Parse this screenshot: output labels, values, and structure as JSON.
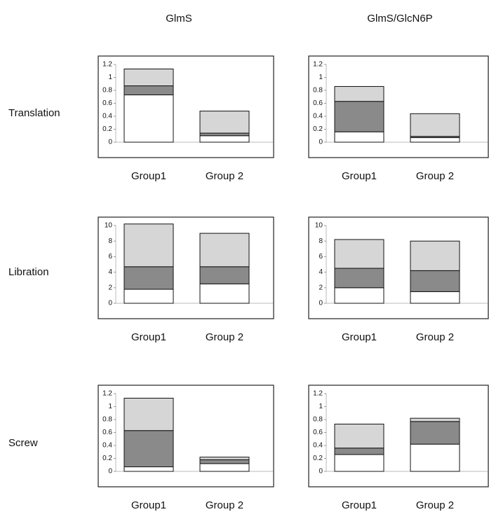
{
  "columns": [
    "GlmS",
    "GlmS/GlcN6P"
  ],
  "rows": [
    "Translation",
    "Libration",
    "Screw"
  ],
  "chart_data": [
    {
      "type": "bar",
      "stacked": true,
      "categories": [
        "Group1",
        "Group 2"
      ],
      "ylim": [
        0,
        1.2
      ],
      "yticks": [
        0,
        0.2,
        0.4,
        0.6,
        0.8,
        1,
        1.2
      ],
      "series": [
        {
          "color": "#ffffff",
          "values": [
            0.73,
            0.1
          ]
        },
        {
          "color": "#8a8a8a",
          "values": [
            0.14,
            0.04
          ]
        },
        {
          "color": "#d6d6d6",
          "values": [
            0.26,
            0.34
          ]
        }
      ]
    },
    {
      "type": "bar",
      "stacked": true,
      "categories": [
        "Group1",
        "Group 2"
      ],
      "ylim": [
        0,
        1.2
      ],
      "yticks": [
        0,
        0.2,
        0.4,
        0.6,
        0.8,
        1,
        1.2
      ],
      "series": [
        {
          "color": "#ffffff",
          "values": [
            0.16,
            0.07
          ]
        },
        {
          "color": "#8a8a8a",
          "values": [
            0.47,
            0.02
          ]
        },
        {
          "color": "#d6d6d6",
          "values": [
            0.23,
            0.35
          ]
        }
      ]
    },
    {
      "type": "bar",
      "stacked": true,
      "categories": [
        "Group1",
        "Group 2"
      ],
      "ylim": [
        0,
        10
      ],
      "yticks": [
        0,
        2,
        4,
        6,
        8,
        10
      ],
      "series": [
        {
          "color": "#ffffff",
          "values": [
            1.8,
            2.5
          ]
        },
        {
          "color": "#8a8a8a",
          "values": [
            2.9,
            2.2
          ]
        },
        {
          "color": "#d6d6d6",
          "values": [
            5.5,
            4.3
          ]
        }
      ]
    },
    {
      "type": "bar",
      "stacked": true,
      "categories": [
        "Group1",
        "Group 2"
      ],
      "ylim": [
        0,
        10
      ],
      "yticks": [
        0,
        2,
        4,
        6,
        8,
        10
      ],
      "series": [
        {
          "color": "#ffffff",
          "values": [
            2,
            1.5
          ]
        },
        {
          "color": "#8a8a8a",
          "values": [
            2.5,
            2.7
          ]
        },
        {
          "color": "#d6d6d6",
          "values": [
            3.7,
            3.8
          ]
        }
      ]
    },
    {
      "type": "bar",
      "stacked": true,
      "categories": [
        "Group1",
        "Group 2"
      ],
      "ylim": [
        0,
        1.2
      ],
      "yticks": [
        0,
        0.2,
        0.4,
        0.6,
        0.8,
        1,
        1.2
      ],
      "series": [
        {
          "color": "#ffffff",
          "values": [
            0.07,
            0.12
          ]
        },
        {
          "color": "#8a8a8a",
          "values": [
            0.56,
            0.06
          ]
        },
        {
          "color": "#d6d6d6",
          "values": [
            0.5,
            0.04
          ]
        }
      ]
    },
    {
      "type": "bar",
      "stacked": true,
      "categories": [
        "Group1",
        "Group 2"
      ],
      "ylim": [
        0,
        1.2
      ],
      "yticks": [
        0,
        0.2,
        0.4,
        0.6,
        0.8,
        1,
        1.2
      ],
      "series": [
        {
          "color": "#ffffff",
          "values": [
            0.26,
            0.42
          ]
        },
        {
          "color": "#8a8a8a",
          "values": [
            0.1,
            0.35
          ]
        },
        {
          "color": "#d6d6d6",
          "values": [
            0.37,
            0.05
          ]
        }
      ]
    }
  ]
}
